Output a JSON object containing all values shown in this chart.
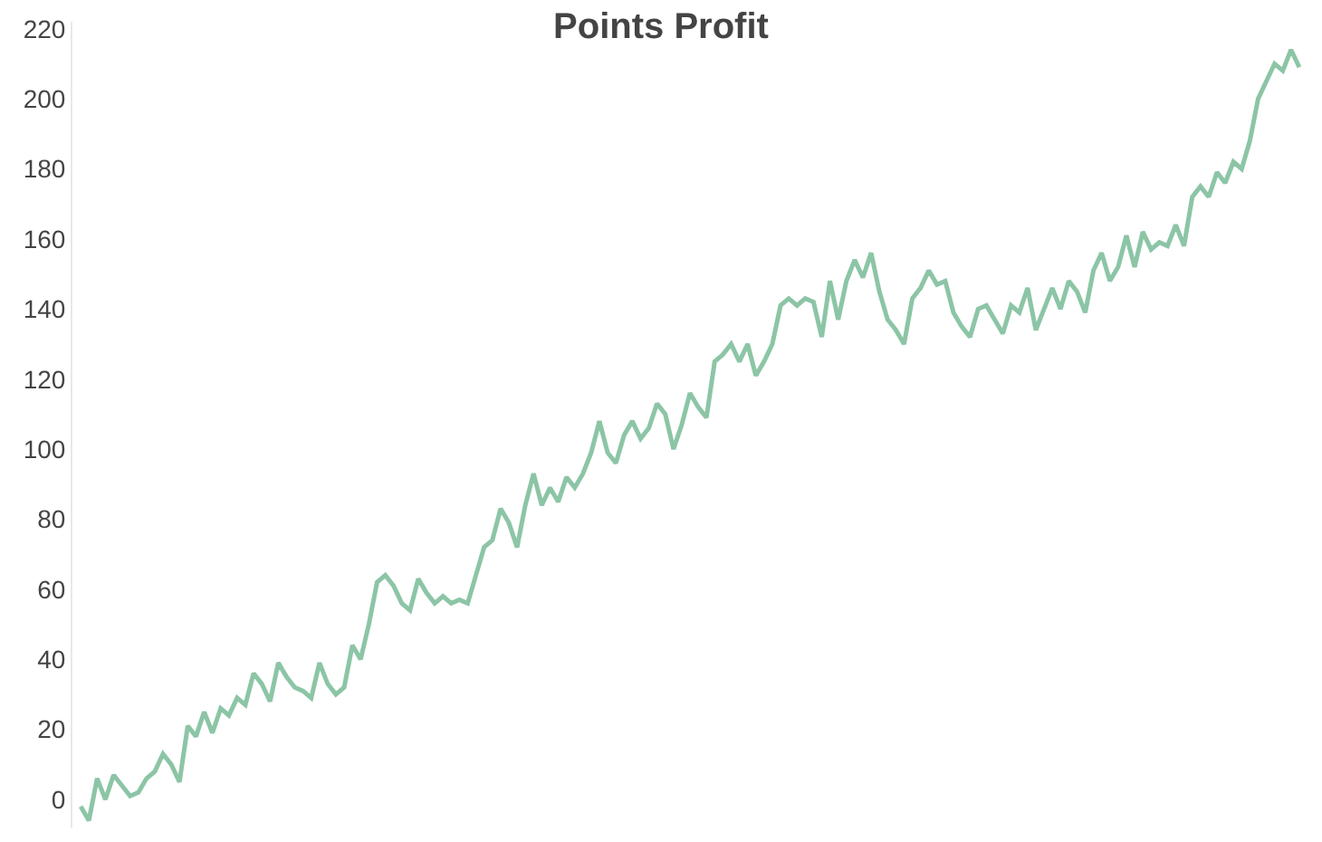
{
  "chart_data": {
    "type": "line",
    "title": "Points Profit",
    "categories": [
      null,
      null,
      null,
      null,
      null,
      null,
      null,
      null,
      null,
      null,
      null,
      null,
      null,
      null,
      null,
      null,
      null,
      null,
      null,
      null,
      null,
      null,
      null,
      null,
      null,
      null,
      null,
      null,
      null,
      null,
      null,
      null,
      null,
      null,
      null,
      null,
      null,
      null,
      null,
      null,
      null,
      null,
      null,
      null,
      null,
      null,
      null,
      null,
      null,
      null,
      null,
      null,
      null,
      null,
      null,
      null,
      null,
      null,
      null,
      null,
      null,
      null,
      null,
      null,
      null,
      null,
      null,
      null,
      null,
      null,
      null,
      null,
      null,
      null,
      null,
      null,
      null,
      null,
      null,
      null,
      null,
      null,
      null,
      null,
      null,
      null,
      null,
      null,
      null,
      null,
      null,
      null,
      null,
      null,
      null,
      null,
      null,
      null,
      null,
      null,
      null,
      null,
      null,
      null,
      null,
      null,
      null,
      null,
      null,
      null,
      null,
      null,
      null,
      null,
      null,
      null,
      null,
      null,
      null,
      null,
      null,
      null,
      null,
      null,
      null,
      null,
      null,
      null,
      null,
      null,
      null,
      null,
      null,
      null,
      null,
      null,
      null,
      null,
      null,
      null,
      null,
      null,
      null,
      null,
      null,
      null,
      null,
      null,
      null
    ],
    "series": [
      {
        "color": "#8cc5a6",
        "values": [
          -2,
          -6,
          6,
          0,
          7,
          4,
          1,
          2,
          6,
          8,
          13,
          10,
          5,
          21,
          18,
          25,
          19,
          26,
          24,
          29,
          27,
          36,
          33,
          28,
          39,
          35,
          32,
          31,
          29,
          39,
          33,
          30,
          32,
          44,
          40,
          50,
          62,
          64,
          61,
          56,
          54,
          63,
          59,
          56,
          58,
          56,
          57,
          56,
          64,
          72,
          74,
          83,
          79,
          72,
          84,
          93,
          84,
          89,
          85,
          92,
          89,
          93,
          99,
          108,
          99,
          96,
          104,
          108,
          103,
          106,
          113,
          110,
          100,
          107,
          116,
          112,
          109,
          125,
          127,
          130,
          125,
          130,
          121,
          125,
          130,
          141,
          143,
          141,
          143,
          142,
          132,
          148,
          137,
          148,
          154,
          149,
          156,
          145,
          137,
          134,
          130,
          143,
          146,
          151,
          147,
          148,
          139,
          135,
          132,
          140,
          141,
          137,
          133,
          141,
          139,
          146,
          134,
          140,
          146,
          140,
          148,
          145,
          139,
          151,
          156,
          148,
          152,
          161,
          152,
          162,
          157,
          159,
          158,
          164,
          158,
          172,
          175,
          172,
          179,
          176,
          182,
          180,
          188,
          200,
          205,
          210,
          208,
          214,
          209
        ]
      }
    ],
    "ylim": [
      -8,
      222
    ],
    "yticks": [
      0,
      20,
      40,
      60,
      80,
      100,
      120,
      140,
      160,
      180,
      200,
      220
    ],
    "marker": "none",
    "line_style": "solid",
    "tick_labels": "y"
  }
}
